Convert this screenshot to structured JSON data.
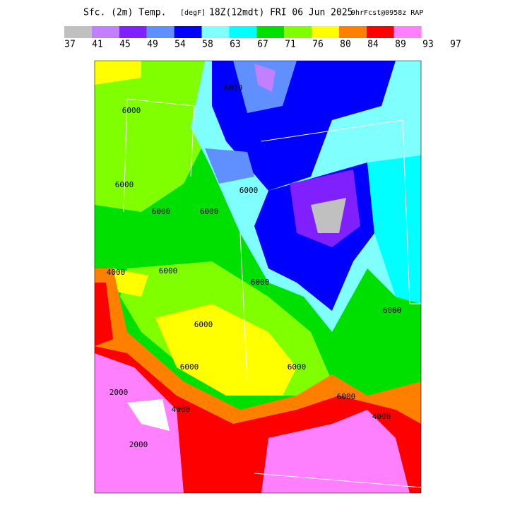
{
  "header": {
    "title": "Sfc. (2m) Temp.",
    "units": "[degF]",
    "time": "18Z(12mdt) FRI 06 Jun 2025",
    "forecast": "9hrFcst@0958z RAP"
  },
  "colorbar": {
    "colors": [
      "#c0c0c0",
      "#c080ff",
      "#8020ff",
      "#6090ff",
      "#0000ff",
      "#80ffff",
      "#00ffff",
      "#00e000",
      "#80ff00",
      "#ffff00",
      "#ff8000",
      "#ff0000",
      "#ff80ff"
    ],
    "labels": [
      "37",
      "41",
      "45",
      "49",
      "54",
      "58",
      "63",
      "67",
      "71",
      "76",
      "80",
      "84",
      "89",
      "93",
      "97"
    ]
  },
  "contour_labels": [
    "6000",
    "6000",
    "6000",
    "6000",
    "6000",
    "4000",
    "6000",
    "6000",
    "6000",
    "6000",
    "6000",
    "6000",
    "2000",
    "4000",
    "2000",
    "6000",
    "4000",
    "6000"
  ]
}
